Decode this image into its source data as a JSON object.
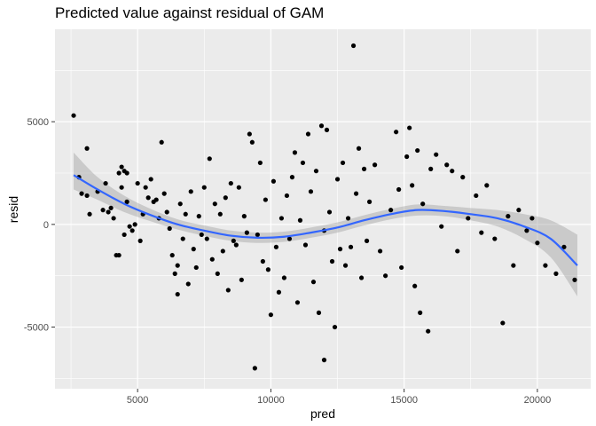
{
  "chart_data": {
    "type": "scatter",
    "title": "Predicted value against residual of GAM",
    "xlabel": "pred",
    "ylabel": "resid",
    "xlim": [
      1900,
      22000
    ],
    "ylim": [
      -8000,
      9500
    ],
    "x_ticks": [
      5000,
      10000,
      15000,
      20000
    ],
    "y_ticks": [
      -5000,
      0,
      5000
    ],
    "x_tick_labels": [
      "5000",
      "10000",
      "15000",
      "20000"
    ],
    "y_tick_labels": [
      "-5000",
      "0",
      "5000"
    ],
    "grid": true,
    "legend": "none",
    "colors": {
      "panel_background": "#ebebeb",
      "grid_major": "#ffffff",
      "point": "#000000",
      "smooth_line": "#3366ff",
      "confidence_band": "#999999"
    },
    "smooth": {
      "x": [
        2600,
        3500,
        4500,
        5500,
        6500,
        7500,
        8500,
        9500,
        10500,
        11500,
        12500,
        13500,
        14500,
        15500,
        16500,
        17500,
        18500,
        19500,
        20500,
        21500
      ],
      "fit": [
        2400,
        1700,
        1000,
        450,
        0,
        -300,
        -550,
        -650,
        -600,
        -400,
        -150,
        200,
        500,
        700,
        650,
        500,
        300,
        -100,
        -700,
        -2000
      ],
      "lower": [
        1700,
        1200,
        600,
        150,
        -250,
        -550,
        -800,
        -900,
        -850,
        -650,
        -400,
        -50,
        250,
        430,
        400,
        200,
        -100,
        -700,
        -1600,
        -3500
      ],
      "upper": [
        3500,
        2300,
        1400,
        750,
        250,
        -50,
        -300,
        -400,
        -350,
        -150,
        100,
        450,
        750,
        970,
        900,
        800,
        700,
        500,
        200,
        -500
      ]
    },
    "points": [
      [
        2600,
        5300
      ],
      [
        2800,
        2300
      ],
      [
        2900,
        1500
      ],
      [
        3100,
        1400
      ],
      [
        3100,
        3700
      ],
      [
        3200,
        500
      ],
      [
        3500,
        1600
      ],
      [
        3700,
        700
      ],
      [
        3800,
        2000
      ],
      [
        3900,
        600
      ],
      [
        4000,
        800
      ],
      [
        4100,
        300
      ],
      [
        4200,
        -1500
      ],
      [
        4300,
        -1500
      ],
      [
        4300,
        2500
      ],
      [
        4400,
        2800
      ],
      [
        4400,
        1800
      ],
      [
        4500,
        2600
      ],
      [
        4500,
        -500
      ],
      [
        4600,
        1100
      ],
      [
        4600,
        2500
      ],
      [
        4700,
        -100
      ],
      [
        4800,
        -300
      ],
      [
        4900,
        0
      ],
      [
        5000,
        2000
      ],
      [
        5100,
        -800
      ],
      [
        5200,
        500
      ],
      [
        5300,
        1800
      ],
      [
        5400,
        1300
      ],
      [
        5500,
        2200
      ],
      [
        5600,
        1100
      ],
      [
        5700,
        1200
      ],
      [
        5800,
        300
      ],
      [
        5900,
        4000
      ],
      [
        6000,
        1500
      ],
      [
        6100,
        600
      ],
      [
        6200,
        -200
      ],
      [
        6300,
        -1500
      ],
      [
        6400,
        -2400
      ],
      [
        6500,
        -2000
      ],
      [
        6500,
        -3400
      ],
      [
        6600,
        1000
      ],
      [
        6700,
        -700
      ],
      [
        6800,
        500
      ],
      [
        6900,
        -2900
      ],
      [
        7000,
        1600
      ],
      [
        7100,
        -1200
      ],
      [
        7200,
        -2100
      ],
      [
        7300,
        400
      ],
      [
        7400,
        -500
      ],
      [
        7500,
        1800
      ],
      [
        7600,
        -700
      ],
      [
        7700,
        3200
      ],
      [
        7800,
        -1700
      ],
      [
        7900,
        1000
      ],
      [
        8000,
        -2400
      ],
      [
        8100,
        500
      ],
      [
        8200,
        -1300
      ],
      [
        8300,
        1300
      ],
      [
        8400,
        -3200
      ],
      [
        8500,
        2000
      ],
      [
        8600,
        -800
      ],
      [
        8700,
        -1000
      ],
      [
        8800,
        1800
      ],
      [
        8900,
        -2700
      ],
      [
        9000,
        400
      ],
      [
        9100,
        -400
      ],
      [
        9200,
        4400
      ],
      [
        9300,
        4000
      ],
      [
        9400,
        -7000
      ],
      [
        9500,
        -500
      ],
      [
        9600,
        3000
      ],
      [
        9700,
        -1800
      ],
      [
        9800,
        1200
      ],
      [
        9900,
        -2200
      ],
      [
        10000,
        -4400
      ],
      [
        10100,
        2100
      ],
      [
        10200,
        -1100
      ],
      [
        10300,
        -3300
      ],
      [
        10400,
        300
      ],
      [
        10500,
        -2600
      ],
      [
        10600,
        1400
      ],
      [
        10700,
        -700
      ],
      [
        10800,
        2300
      ],
      [
        10900,
        3500
      ],
      [
        11000,
        -3800
      ],
      [
        11100,
        200
      ],
      [
        11200,
        3000
      ],
      [
        11300,
        -1000
      ],
      [
        11400,
        4400
      ],
      [
        11500,
        1600
      ],
      [
        11600,
        -2800
      ],
      [
        11700,
        2600
      ],
      [
        11800,
        -4300
      ],
      [
        11900,
        4800
      ],
      [
        12000,
        -300
      ],
      [
        12000,
        -6600
      ],
      [
        12100,
        4600
      ],
      [
        12200,
        600
      ],
      [
        12300,
        -1800
      ],
      [
        12400,
        -5000
      ],
      [
        12500,
        2200
      ],
      [
        12600,
        -1200
      ],
      [
        12700,
        3000
      ],
      [
        12800,
        -2000
      ],
      [
        12900,
        300
      ],
      [
        13000,
        -1100
      ],
      [
        13100,
        8700
      ],
      [
        13200,
        1500
      ],
      [
        13300,
        3700
      ],
      [
        13400,
        -2600
      ],
      [
        13500,
        2700
      ],
      [
        13600,
        -800
      ],
      [
        13700,
        1100
      ],
      [
        13900,
        2900
      ],
      [
        14100,
        -1300
      ],
      [
        14300,
        -2500
      ],
      [
        14500,
        700
      ],
      [
        14700,
        4500
      ],
      [
        14800,
        1700
      ],
      [
        14900,
        -2100
      ],
      [
        15100,
        3300
      ],
      [
        15200,
        4700
      ],
      [
        15300,
        1900
      ],
      [
        15400,
        -3000
      ],
      [
        15500,
        3600
      ],
      [
        15600,
        -4300
      ],
      [
        15700,
        1000
      ],
      [
        15900,
        -5200
      ],
      [
        16000,
        2700
      ],
      [
        16200,
        3400
      ],
      [
        16400,
        -100
      ],
      [
        16600,
        2900
      ],
      [
        16800,
        2600
      ],
      [
        17000,
        -1300
      ],
      [
        17200,
        2300
      ],
      [
        17400,
        300
      ],
      [
        17700,
        1400
      ],
      [
        17900,
        -400
      ],
      [
        18100,
        1900
      ],
      [
        18400,
        -700
      ],
      [
        18700,
        -4800
      ],
      [
        18900,
        400
      ],
      [
        19100,
        -2000
      ],
      [
        19300,
        700
      ],
      [
        19600,
        -300
      ],
      [
        19800,
        300
      ],
      [
        20000,
        -900
      ],
      [
        20300,
        -2000
      ],
      [
        20700,
        -2400
      ],
      [
        21000,
        -1100
      ],
      [
        21400,
        -2700
      ]
    ]
  }
}
